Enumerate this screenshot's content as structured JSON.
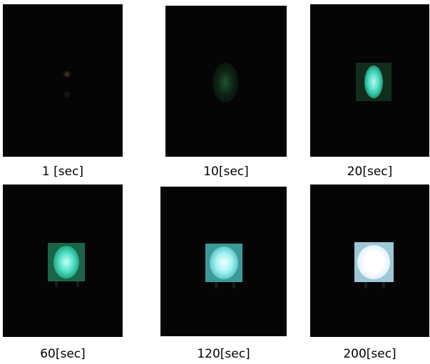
{
  "panels": [
    {
      "caption": "1 [sec]"
    },
    {
      "caption": "10[sec]"
    },
    {
      "caption": "20[sec]"
    },
    {
      "caption": "60[sec]"
    },
    {
      "caption": "120[sec]"
    },
    {
      "caption": "200[sec]"
    }
  ]
}
